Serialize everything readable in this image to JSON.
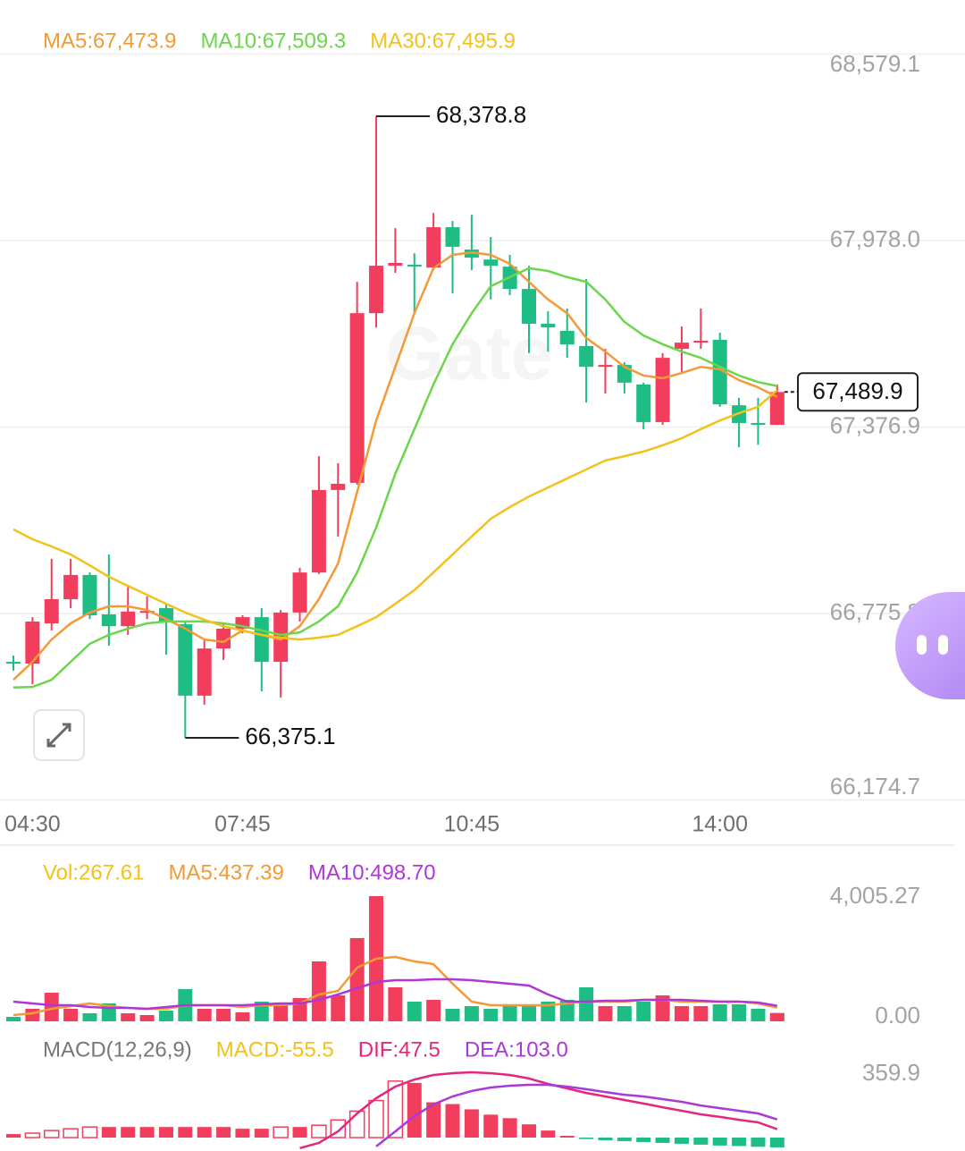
{
  "chart_data": [
    {
      "type": "candlestick",
      "categories": [
        null,
        "04:30",
        null,
        null,
        null,
        null,
        null,
        null,
        null,
        null,
        null,
        null,
        "07:45",
        null,
        null,
        null,
        null,
        null,
        null,
        null,
        null,
        null,
        null,
        null,
        "10:45",
        null,
        null,
        null,
        null,
        null,
        null,
        null,
        null,
        null,
        null,
        null,
        null,
        "14:00",
        null,
        null,
        null
      ],
      "open": [
        66620,
        66614,
        66744,
        66822,
        66900,
        66773,
        66735,
        66779,
        66793,
        66741,
        66511,
        66663,
        66727,
        66764,
        66620,
        66779,
        66908,
        67174,
        67197,
        67744,
        67897,
        67900,
        67891,
        68021,
        67949,
        67917,
        67894,
        67822,
        67710,
        67687,
        67638,
        67571,
        67577,
        67514,
        67393,
        67629,
        67649,
        67658,
        67447,
        67390,
        67384
      ],
      "high": [
        66640,
        66764,
        66952,
        66952,
        66908,
        66966,
        66865,
        66831,
        66807,
        66750,
        66692,
        66741,
        66770,
        66793,
        66787,
        66923,
        67283,
        67260,
        67845,
        68378.8,
        68018,
        67937,
        68067,
        68041,
        68061,
        67989,
        67932,
        67897,
        67750,
        67759,
        67854,
        67629,
        67586,
        67520,
        67615,
        67701,
        67759,
        67681,
        67471,
        67471,
        67514
      ],
      "low": [
        66591,
        66548,
        66721,
        66793,
        66758,
        66672,
        66707,
        66758,
        66643,
        66375.1,
        66482,
        66626,
        66712,
        66525,
        66505,
        66750,
        66903,
        67024,
        67191,
        67698,
        67874,
        67744,
        67883,
        67808,
        67883,
        67788,
        67802,
        67615,
        67620,
        67600,
        67456,
        67485,
        67485,
        67370,
        67384,
        67548,
        67629,
        67442,
        67312,
        67320,
        67384
      ],
      "close": [
        66614,
        66750,
        66822,
        66900,
        66770,
        66735,
        66782,
        66784,
        66750,
        66511,
        66663,
        66727,
        66764,
        66620,
        66779,
        66908,
        67174,
        67194,
        67744,
        67897,
        67906,
        67894,
        68021,
        67958,
        67923,
        67897,
        67822,
        67710,
        67698,
        67643,
        67571,
        67577,
        67520,
        67393,
        67600,
        67649,
        67655,
        67450,
        67390,
        67387,
        67489.9
      ],
      "up_color": "#f23e5c",
      "down_color": "#1dbd84",
      "ylim": [
        66174.7,
        68579.1
      ],
      "yticks": [
        {
          "value": 68579.1,
          "label": "68,579.1"
        },
        {
          "value": 67978.0,
          "label": "67,978.0"
        },
        {
          "value": 67376.9,
          "label": "67,376.9"
        },
        {
          "value": 66775.8,
          "label": "66,775.8"
        },
        {
          "value": 66174.7,
          "label": "66,174.7"
        }
      ],
      "grid": true,
      "series": [
        {
          "label": "MA5:67,473.9",
          "color": "#f39a36",
          "values": [
            66562,
            66620,
            66692,
            66744,
            66779,
            66799,
            66799,
            66787,
            66758,
            66727,
            66692,
            66684,
            66721,
            66707,
            66692,
            66735,
            66822,
            66937,
            67168,
            67398,
            67571,
            67744,
            67889,
            67932,
            67940,
            67932,
            67903,
            67845,
            67788,
            67744,
            67664,
            67620,
            67571,
            67543,
            67534,
            67551,
            67571,
            67563,
            67528,
            67505,
            67473.9
          ]
        },
        {
          "label": "MA10:67,509.3",
          "color": "#6bd64a",
          "values": [
            66537,
            66539,
            66562,
            66620,
            66678,
            66707,
            66727,
            66744,
            66750,
            66750,
            66750,
            66744,
            66735,
            66721,
            66707,
            66715,
            66750,
            66799,
            66908,
            67053,
            67226,
            67370,
            67514,
            67644,
            67744,
            67831,
            67860,
            67889,
            67880,
            67860,
            67845,
            67788,
            67716,
            67672,
            67644,
            67620,
            67600,
            67571,
            67543,
            67522,
            67509.3
          ]
        },
        {
          "label": "MA30:67,495.9",
          "color": "#f2c21b",
          "values": [
            67047,
            67015,
            66992,
            66966,
            66931,
            66894,
            66865,
            66836,
            66807,
            66779,
            66756,
            66735,
            66721,
            66707,
            66698,
            66692,
            66698,
            66707,
            66735,
            66764,
            66807,
            66851,
            66908,
            66966,
            67024,
            67081,
            67119,
            67153,
            67182,
            67211,
            67240,
            67269,
            67283,
            67298,
            67318,
            67341,
            67370,
            67398,
            67422,
            67442,
            67495.9
          ]
        }
      ],
      "annotations": [
        {
          "value": 68378.8,
          "label": "68,378.8"
        },
        {
          "value": 66375.1,
          "label": "66,375.1"
        }
      ],
      "last_price": {
        "value": 67489.9,
        "label": "67,489.9"
      },
      "watermark": "Gate"
    },
    {
      "type": "volume",
      "label": "Vol:267.61",
      "color": "#f2c21b",
      "values": [
        143,
        401,
        915,
        401,
        257,
        572,
        257,
        200,
        343,
        1030,
        401,
        401,
        286,
        629,
        572,
        744,
        1917,
        830,
        2661,
        4005.27,
        1087,
        629,
        687,
        401,
        486,
        401,
        486,
        486,
        629,
        687,
        1087,
        486,
        486,
        629,
        830,
        486,
        486,
        544,
        544,
        401,
        267.61
      ],
      "ylim": [
        0,
        4005.27
      ],
      "yticks": [
        {
          "value": 4005.27,
          "label": "4,005.27"
        },
        {
          "value": 0,
          "label": "0.00"
        }
      ],
      "series": [
        {
          "label": "MA5:437.39",
          "color": "#f39a36",
          "values": [
            200,
            257,
            401,
            486,
            572,
            486,
            429,
            401,
            401,
            515,
            515,
            515,
            458,
            515,
            515,
            572,
            858,
            973,
            1717,
            2003,
            2060,
            1917,
            1831,
            1202,
            629,
            515,
            515,
            515,
            515,
            572,
            629,
            629,
            629,
            687,
            687,
            629,
            629,
            629,
            629,
            572,
            437.39
          ]
        },
        {
          "label": "MA10:498.70",
          "color": "#b235d6",
          "values": [
            629,
            572,
            515,
            515,
            458,
            429,
            429,
            401,
            458,
            515,
            515,
            515,
            515,
            544,
            572,
            572,
            687,
            858,
            1059,
            1259,
            1316,
            1316,
            1345,
            1345,
            1316,
            1259,
            1202,
            1144,
            858,
            629,
            629,
            658,
            658,
            687,
            687,
            687,
            658,
            629,
            629,
            601,
            498.7
          ]
        }
      ]
    },
    {
      "type": "macd",
      "title": "MACD(12,26,9)",
      "label": "MACD:-55.5",
      "color": "#f2c21b",
      "values": [
        20,
        25,
        40,
        50,
        60,
        60,
        60,
        60,
        60,
        60,
        60,
        60,
        50,
        50,
        60,
        60,
        70,
        100,
        150,
        210,
        320,
        310,
        200,
        190,
        160,
        130,
        110,
        75,
        40,
        10,
        -8,
        -15,
        -20,
        -25,
        -30,
        -35,
        -40,
        -45,
        -48,
        -52,
        -55.5
      ],
      "up_color": "#f23e5c",
      "down_color": "#1dbd84",
      "ylim": [
        -60.8,
        359.9
      ],
      "yticks": [
        359.9
      ],
      "series": [
        {
          "label": "DIF:47.5",
          "color": "#e3287b",
          "values": [
            null,
            null,
            null,
            null,
            null,
            null,
            null,
            null,
            null,
            null,
            null,
            null,
            null,
            null,
            null,
            -60,
            -30,
            35,
            137,
            223,
            289,
            329,
            355,
            365,
            370,
            365,
            355,
            335,
            304,
            279,
            253,
            233,
            213,
            193,
            172,
            152,
            132,
            117,
            101,
            86,
            47.5
          ]
        },
        {
          "label": "DEA:103.0",
          "color": "#a73ad9",
          "values": [
            null,
            null,
            null,
            null,
            null,
            null,
            null,
            null,
            null,
            null,
            null,
            null,
            null,
            null,
            null,
            null,
            null,
            null,
            null,
            -50,
            35,
            122,
            188,
            233,
            264,
            284,
            294,
            299,
            299,
            289,
            274,
            258,
            243,
            233,
            218,
            203,
            182,
            167,
            152,
            137,
            103.0
          ]
        }
      ]
    }
  ]
}
